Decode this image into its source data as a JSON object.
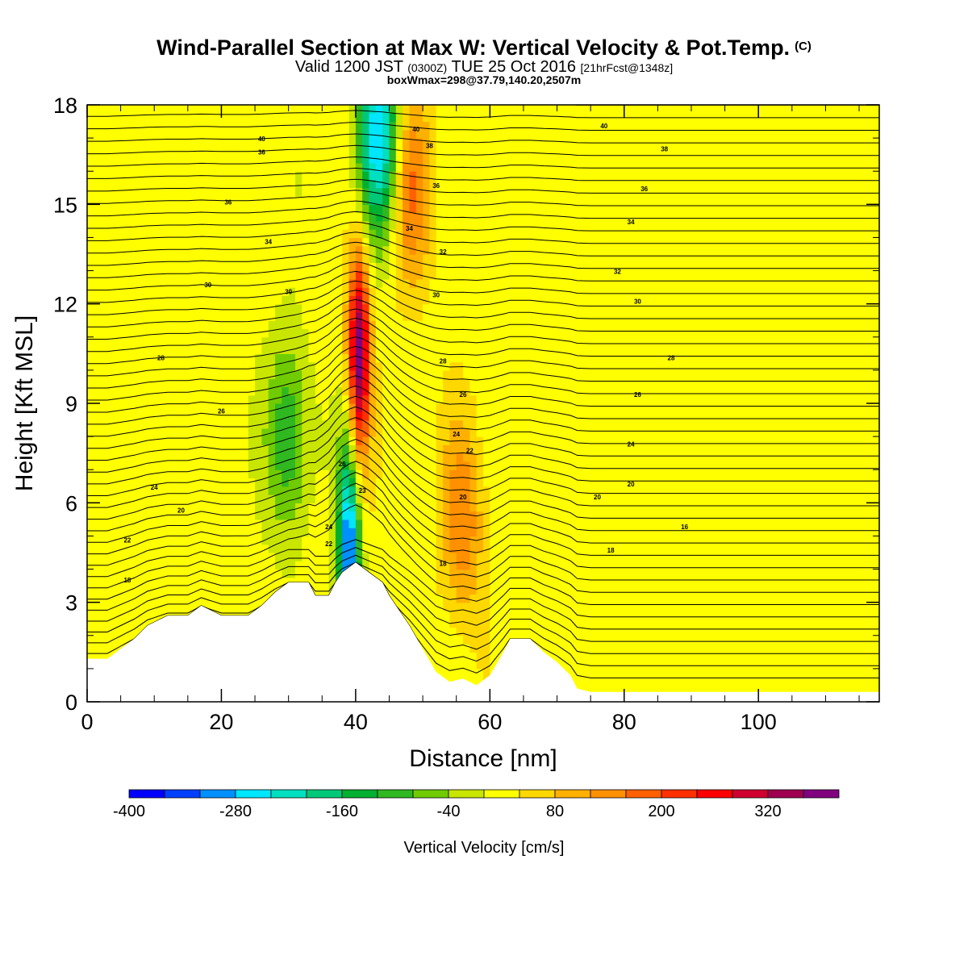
{
  "titles": {
    "title": "Wind-Parallel Section at Max W: Vertical Velocity & Pot.Temp.",
    "copyright": "(C)",
    "valid_prefix": "Valid 1200 JST",
    "valid_utc": "(0300Z)",
    "valid_date": "TUE 25 Oct 2016",
    "forecast_info": "[21hrFcst@1348z]",
    "box_info": "boxWmax=298@37.79,140.20,2507m"
  },
  "chart_data": {
    "type": "heatmap",
    "xlabel": "Distance [nm]",
    "ylabel": "Height [Kft MSL]",
    "xlim": [
      0,
      118
    ],
    "ylim": [
      0,
      18
    ],
    "x_ticks": [
      0,
      20,
      40,
      60,
      80,
      100
    ],
    "y_ticks": [
      0,
      3,
      6,
      9,
      12,
      15,
      18
    ],
    "terrain_kft": [
      [
        0,
        1.3
      ],
      [
        3,
        1.3
      ],
      [
        5,
        1.6
      ],
      [
        7,
        1.9
      ],
      [
        9,
        2.3
      ],
      [
        12,
        2.6
      ],
      [
        15,
        2.6
      ],
      [
        17,
        2.9
      ],
      [
        20,
        2.6
      ],
      [
        24,
        2.6
      ],
      [
        26,
        2.9
      ],
      [
        28,
        3.3
      ],
      [
        30,
        3.6
      ],
      [
        33,
        3.6
      ],
      [
        34,
        3.2
      ],
      [
        36,
        3.2
      ],
      [
        37,
        3.6
      ],
      [
        38,
        3.9
      ],
      [
        40,
        4.2
      ],
      [
        42,
        3.9
      ],
      [
        44,
        3.6
      ],
      [
        45,
        3.2
      ],
      [
        46,
        2.9
      ],
      [
        48,
        2.3
      ],
      [
        50,
        1.6
      ],
      [
        52,
        0.9
      ],
      [
        54,
        0.6
      ],
      [
        56,
        0.7
      ],
      [
        58,
        0.5
      ],
      [
        60,
        0.8
      ],
      [
        62,
        1.5
      ],
      [
        63,
        1.9
      ],
      [
        66,
        1.9
      ],
      [
        68,
        1.5
      ],
      [
        70,
        1.2
      ],
      [
        72,
        0.8
      ],
      [
        73,
        0.4
      ],
      [
        75,
        0.3
      ],
      [
        118,
        0.3
      ]
    ],
    "velocity_cores": [
      {
        "x": 40.5,
        "z": 10.5,
        "w": 360
      },
      {
        "x": 48,
        "z": 15.5,
        "w": 150
      },
      {
        "x": 56,
        "z": 5.5,
        "w": 130
      },
      {
        "x": 43.5,
        "z": 17,
        "w": -290
      },
      {
        "x": 39,
        "z": 4.5,
        "w": -360
      },
      {
        "x": 30,
        "z": 8,
        "w": -140
      }
    ],
    "theta_contour_labels": [
      {
        "x": 26,
        "z": 16.5,
        "text": "36"
      },
      {
        "x": 21,
        "z": 15,
        "text": "36"
      },
      {
        "x": 18,
        "z": 12.5,
        "text": "30"
      },
      {
        "x": 11,
        "z": 10.3,
        "text": "28"
      },
      {
        "x": 20,
        "z": 8.7,
        "text": "26"
      },
      {
        "x": 10,
        "z": 6.4,
        "text": "24"
      },
      {
        "x": 14,
        "z": 5.7,
        "text": "20"
      },
      {
        "x": 6,
        "z": 4.8,
        "text": "22"
      },
      {
        "x": 6,
        "z": 3.6,
        "text": "18"
      },
      {
        "x": 26,
        "z": 16.9,
        "text": "40"
      },
      {
        "x": 27,
        "z": 13.8,
        "text": "34"
      },
      {
        "x": 30,
        "z": 12.3,
        "text": "30"
      },
      {
        "x": 38,
        "z": 7.1,
        "text": "26"
      },
      {
        "x": 41,
        "z": 6.3,
        "text": "23"
      },
      {
        "x": 36,
        "z": 5.2,
        "text": "24"
      },
      {
        "x": 36,
        "z": 4.7,
        "text": "22"
      },
      {
        "x": 49,
        "z": 17.2,
        "text": "40"
      },
      {
        "x": 51,
        "z": 16.7,
        "text": "38"
      },
      {
        "x": 52,
        "z": 15.5,
        "text": "36"
      },
      {
        "x": 48,
        "z": 14.2,
        "text": "34"
      },
      {
        "x": 53,
        "z": 13.5,
        "text": "32"
      },
      {
        "x": 52,
        "z": 12.2,
        "text": "30"
      },
      {
        "x": 53,
        "z": 10.2,
        "text": "28"
      },
      {
        "x": 56,
        "z": 9.2,
        "text": "26"
      },
      {
        "x": 55,
        "z": 8.0,
        "text": "24"
      },
      {
        "x": 57,
        "z": 7.5,
        "text": "22"
      },
      {
        "x": 56,
        "z": 6.1,
        "text": "20"
      },
      {
        "x": 53,
        "z": 4.1,
        "text": "18"
      },
      {
        "x": 77,
        "z": 17.3,
        "text": "40"
      },
      {
        "x": 86,
        "z": 16.6,
        "text": "38"
      },
      {
        "x": 83,
        "z": 15.4,
        "text": "36"
      },
      {
        "x": 81,
        "z": 14.4,
        "text": "34"
      },
      {
        "x": 79,
        "z": 12.9,
        "text": "32"
      },
      {
        "x": 82,
        "z": 12.0,
        "text": "30"
      },
      {
        "x": 87,
        "z": 10.3,
        "text": "28"
      },
      {
        "x": 82,
        "z": 9.2,
        "text": "26"
      },
      {
        "x": 81,
        "z": 7.7,
        "text": "24"
      },
      {
        "x": 81,
        "z": 6.5,
        "text": "20"
      },
      {
        "x": 76,
        "z": 6.1,
        "text": "20"
      },
      {
        "x": 89,
        "z": 5.2,
        "text": "16"
      },
      {
        "x": 78,
        "z": 4.5,
        "text": "18"
      }
    ]
  },
  "colorbar": {
    "label": "Vertical Velocity [cm/s]",
    "min": -400,
    "max": 400,
    "step": 40,
    "tick_values": [
      -400,
      -280,
      -160,
      -40,
      80,
      200,
      320
    ],
    "tick_labels": [
      "-400",
      "-280",
      "-160",
      "-40",
      "80",
      "200",
      "320"
    ],
    "colors": [
      "#0000ff",
      "#0040ff",
      "#0090ff",
      "#00e6ff",
      "#00e0c0",
      "#00c878",
      "#00b030",
      "#30b820",
      "#70cc00",
      "#c8e600",
      "#ffff00",
      "#ffd800",
      "#ffb000",
      "#ff9000",
      "#ff6000",
      "#ff3000",
      "#ff0000",
      "#d00030",
      "#a00050",
      "#800080"
    ]
  }
}
